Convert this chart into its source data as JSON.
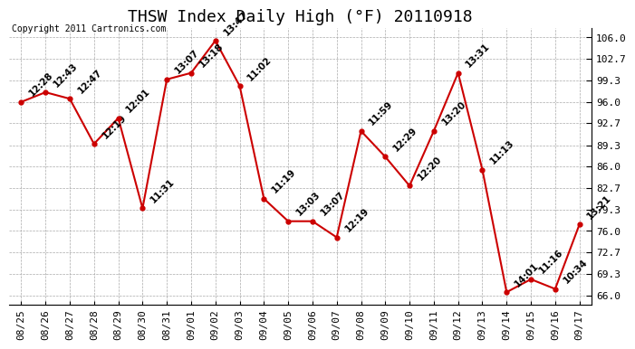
{
  "title": "THSW Index Daily High (°F) 20110918",
  "copyright": "Copyright 2011 Cartronics.com",
  "x_labels": [
    "08/25",
    "08/26",
    "08/27",
    "08/28",
    "08/29",
    "08/30",
    "08/31",
    "09/01",
    "09/02",
    "09/03",
    "09/04",
    "09/05",
    "09/06",
    "09/07",
    "09/08",
    "09/09",
    "09/10",
    "09/11",
    "09/12",
    "09/13",
    "09/14",
    "09/15",
    "09/16",
    "09/17"
  ],
  "y_values": [
    96.0,
    97.5,
    96.5,
    89.5,
    93.5,
    79.5,
    99.5,
    100.5,
    105.5,
    98.5,
    81.0,
    77.5,
    77.5,
    75.0,
    91.5,
    87.5,
    83.0,
    91.5,
    100.5,
    85.5,
    66.5,
    68.5,
    67.0,
    77.0
  ],
  "point_labels": [
    "12:28",
    "12:43",
    "12:47",
    "12:19",
    "12:01",
    "11:31",
    "13:07",
    "13:18",
    "13:47",
    "11:02",
    "11:19",
    "13:03",
    "13:07",
    "12:19",
    "11:59",
    "12:29",
    "12:20",
    "13:20",
    "13:31",
    "11:13",
    "14:01",
    "11:16",
    "10:34",
    "13:21"
  ],
  "y_ticks": [
    66.0,
    69.3,
    72.7,
    76.0,
    79.3,
    82.7,
    86.0,
    89.3,
    92.7,
    96.0,
    99.3,
    102.7,
    106.0
  ],
  "ylim": [
    64.5,
    107.5
  ],
  "line_color": "#cc0000",
  "marker_color": "#cc0000",
  "bg_color": "#ffffff",
  "plot_bg_color": "#ffffff",
  "grid_color": "#aaaaaa",
  "title_fontsize": 13,
  "label_fontsize": 7.5,
  "tick_fontsize": 8,
  "copyright_fontsize": 7
}
